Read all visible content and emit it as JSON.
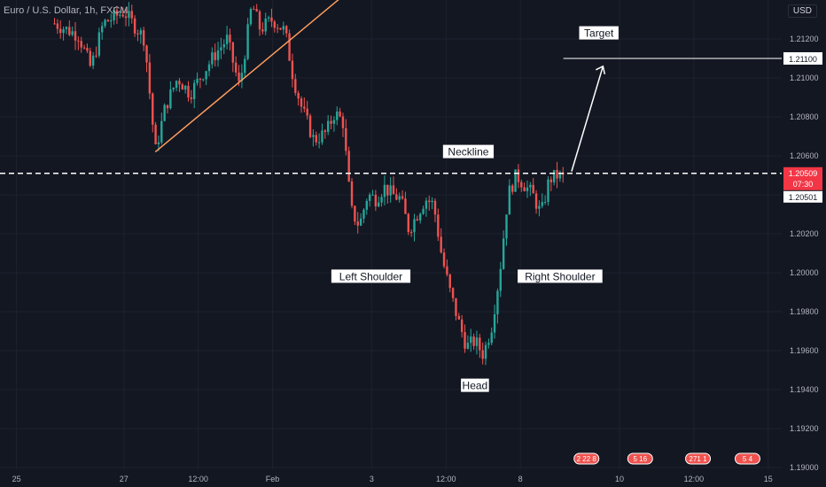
{
  "header": {
    "symbol_title": "Euro / U.S. Dollar, 1h, FXCM",
    "currency": "USD"
  },
  "chart_data": {
    "type": "candlestick",
    "title": "Euro / U.S. Dollar, 1h, FXCM",
    "ylim": [
      1.189,
      1.214
    ],
    "y_ticks": [
      "1.21200",
      "1.21000",
      "1.20800",
      "1.20600",
      "1.20400",
      "1.20200",
      "1.20000",
      "1.19800",
      "1.19600",
      "1.19400",
      "1.19200",
      "1.19000"
    ],
    "x_ticks": [
      {
        "label": "25",
        "t": 0.02
      },
      {
        "label": "27",
        "t": 0.15
      },
      {
        "label": "12:00",
        "t": 0.24
      },
      {
        "label": "Feb",
        "t": 0.33
      },
      {
        "label": "3",
        "t": 0.45
      },
      {
        "label": "12:00",
        "t": 0.54
      },
      {
        "label": "8",
        "t": 0.63
      },
      {
        "label": "10",
        "t": 0.75
      },
      {
        "label": "12:00",
        "t": 0.84
      },
      {
        "label": "15",
        "t": 0.93
      }
    ],
    "price_path": [
      [
        0.066,
        1.2128
      ],
      [
        0.08,
        1.2125
      ],
      [
        0.095,
        1.2122
      ],
      [
        0.11,
        1.2105
      ],
      [
        0.125,
        1.2128
      ],
      [
        0.15,
        1.2134
      ],
      [
        0.175,
        1.212
      ],
      [
        0.188,
        1.2062
      ],
      [
        0.2,
        1.2085
      ],
      [
        0.215,
        1.21
      ],
      [
        0.23,
        1.2092
      ],
      [
        0.245,
        1.2102
      ],
      [
        0.26,
        1.2112
      ],
      [
        0.275,
        1.212
      ],
      [
        0.29,
        1.2095
      ],
      [
        0.305,
        1.2138
      ],
      [
        0.315,
        1.2125
      ],
      [
        0.33,
        1.213
      ],
      [
        0.345,
        1.2124
      ],
      [
        0.355,
        1.21
      ],
      [
        0.365,
        1.2085
      ],
      [
        0.38,
        1.2068
      ],
      [
        0.395,
        1.2072
      ],
      [
        0.405,
        1.2082
      ],
      [
        0.415,
        1.2078
      ],
      [
        0.425,
        1.2032
      ],
      [
        0.435,
        1.2024
      ],
      [
        0.445,
        1.204
      ],
      [
        0.455,
        1.2038
      ],
      [
        0.465,
        1.2044
      ],
      [
        0.475,
        1.204
      ],
      [
        0.485,
        1.2038
      ],
      [
        0.495,
        1.2022
      ],
      [
        0.505,
        1.203
      ],
      [
        0.515,
        1.2038
      ],
      [
        0.525,
        1.2035
      ],
      [
        0.535,
        1.2008
      ],
      [
        0.545,
        1.199
      ],
      [
        0.555,
        1.1975
      ],
      [
        0.565,
        1.1962
      ],
      [
        0.575,
        1.1965
      ],
      [
        0.585,
        1.1958
      ],
      [
        0.595,
        1.1972
      ],
      [
        0.605,
        1.2
      ],
      [
        0.615,
        1.204
      ],
      [
        0.625,
        1.205
      ],
      [
        0.635,
        1.2045
      ],
      [
        0.645,
        1.204
      ],
      [
        0.655,
        1.203
      ],
      [
        0.665,
        1.2048
      ],
      [
        0.675,
        1.205
      ],
      [
        0.685,
        1.2048
      ]
    ],
    "current_price": "1.20509",
    "countdown": "07:30",
    "prev_close": "1.20501",
    "neckline_price": 1.2051,
    "target_price": 1.211,
    "target_price_label": "1.21100",
    "triangle_lines": [
      {
        "from": [
          0.188,
          1.2062
        ],
        "to": [
          0.415,
          1.2142
        ]
      }
    ],
    "annotations": {
      "target": "Target",
      "neckline": "Neckline",
      "left_shoulder": "Left Shoulder",
      "right_shoulder": "Right Shoulder",
      "head": "Head"
    },
    "colors": {
      "up": "#26a69a",
      "down": "#ef5350",
      "background": "#131722",
      "grid": "#1e222d",
      "neckline": "#ffffff",
      "trendline": "#ff9e5e",
      "price_badge": "#f23645"
    }
  },
  "event_badges": [
    "2 22 8",
    "5 16",
    "271 1",
    "5 4"
  ]
}
